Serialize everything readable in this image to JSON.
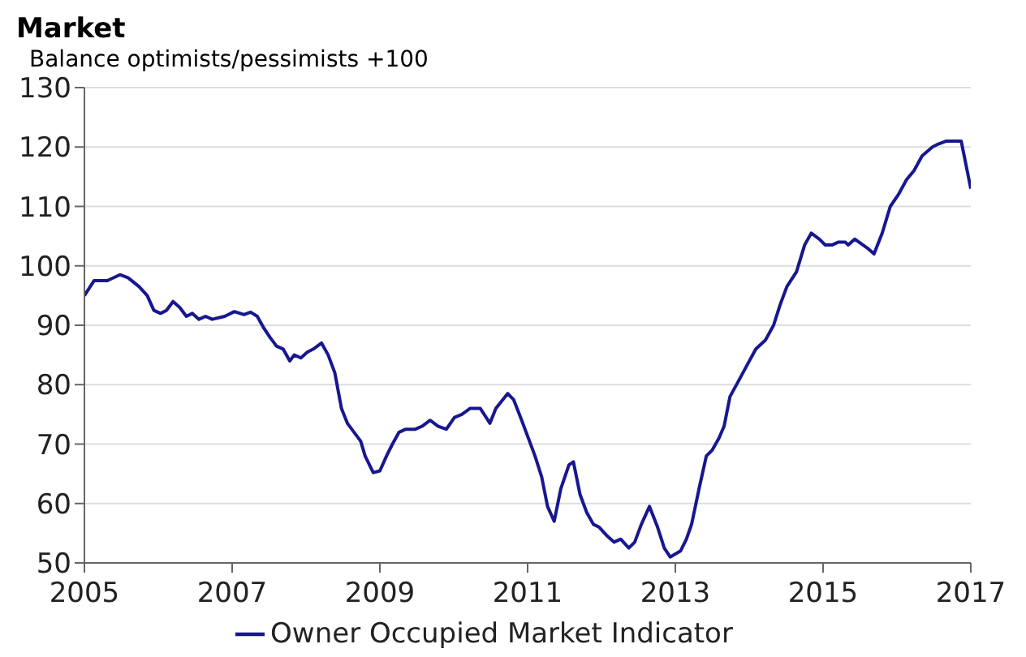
{
  "chart_data": {
    "type": "line",
    "title": "Market",
    "ylabel": "Balance optimists/pessimists +100",
    "x": [
      2005.0,
      2005.13,
      2005.31,
      2005.48,
      2005.59,
      2005.74,
      2005.85,
      2005.94,
      2006.03,
      2006.11,
      2006.2,
      2006.29,
      2006.38,
      2006.46,
      2006.55,
      2006.64,
      2006.73,
      2006.9,
      2007.03,
      2007.16,
      2007.25,
      2007.34,
      2007.43,
      2007.51,
      2007.6,
      2007.69,
      2007.78,
      2007.84,
      2007.93,
      2008.02,
      2008.1,
      2008.21,
      2008.3,
      2008.39,
      2008.48,
      2008.56,
      2008.65,
      2008.74,
      2008.8,
      2008.91,
      2009.0,
      2009.09,
      2009.17,
      2009.26,
      2009.35,
      2009.48,
      2009.57,
      2009.68,
      2009.79,
      2009.9,
      2010.01,
      2010.11,
      2010.22,
      2010.36,
      2010.49,
      2010.57,
      2010.73,
      2010.81,
      2010.92,
      2011.01,
      2011.1,
      2011.19,
      2011.27,
      2011.36,
      2011.45,
      2011.56,
      2011.62,
      2011.71,
      2011.8,
      2011.89,
      2011.97,
      2012.08,
      2012.17,
      2012.26,
      2012.37,
      2012.45,
      2012.54,
      2012.65,
      2012.76,
      2012.85,
      2012.93,
      2013.07,
      2013.15,
      2013.22,
      2013.33,
      2013.42,
      2013.5,
      2013.59,
      2013.66,
      2013.74,
      2013.85,
      2013.98,
      2014.09,
      2014.22,
      2014.33,
      2014.42,
      2014.51,
      2014.64,
      2014.75,
      2014.84,
      2014.95,
      2015.03,
      2015.12,
      2015.21,
      2015.3,
      2015.34,
      2015.43,
      2015.6,
      2015.69,
      2015.8,
      2015.91,
      2016.02,
      2016.13,
      2016.23,
      2016.34,
      2016.48,
      2016.56,
      2016.67,
      2016.87,
      2017.0
    ],
    "series": [
      {
        "name": "Owner Occupied Market Indicator",
        "color": "#17178f",
        "values": [
          95,
          97.5,
          97.5,
          98.5,
          98,
          96.5,
          95,
          92.5,
          92,
          92.5,
          94,
          93,
          91.5,
          92,
          91,
          91.5,
          91,
          91.5,
          92.3,
          91.8,
          92.2,
          91.5,
          89.5,
          88,
          86.5,
          86,
          84,
          85,
          84.5,
          85.5,
          86,
          87,
          85,
          82,
          76,
          73.5,
          72,
          70.5,
          68,
          65.2,
          65.5,
          68,
          70,
          72,
          72.5,
          72.5,
          73,
          74,
          73,
          72.5,
          74.5,
          75,
          76,
          76,
          73.5,
          76,
          78.5,
          77.5,
          74,
          71,
          68,
          64.5,
          59.5,
          57,
          62.5,
          66.5,
          67,
          61.5,
          58.5,
          56.5,
          56,
          54.5,
          53.5,
          54,
          52.5,
          53.5,
          56.5,
          59.5,
          56,
          52.5,
          51,
          52,
          54,
          56.5,
          63,
          68,
          69,
          71,
          73,
          78,
          80.5,
          83.5,
          86,
          87.5,
          90,
          93.5,
          96.5,
          99,
          103.5,
          105.5,
          104.5,
          103.5,
          103.5,
          104,
          104,
          103.5,
          104.5,
          103,
          102,
          105.5,
          110,
          112,
          114.5,
          116,
          118.5,
          120,
          120.5,
          121,
          121,
          113
        ]
      }
    ],
    "xlim": [
      2005,
      2017
    ],
    "xticks": [
      2005,
      2007,
      2009,
      2011,
      2013,
      2015,
      2017
    ],
    "ylim": [
      50,
      130
    ],
    "yticks": [
      50,
      60,
      70,
      80,
      90,
      100,
      110,
      120,
      130
    ],
    "grid": "y",
    "legend": "bottom",
    "marker": "none",
    "line_style": "solid"
  }
}
